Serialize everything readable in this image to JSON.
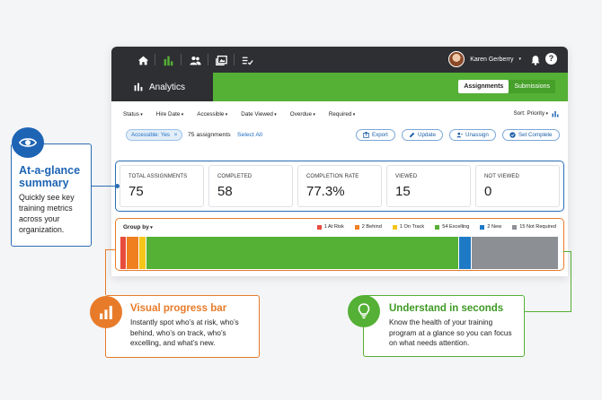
{
  "topnav": {
    "icons": [
      "home-icon",
      "analytics-icon",
      "people-icon",
      "media-icon",
      "checklist-icon",
      "bell-icon",
      "help-icon"
    ],
    "user_name": "Karen Gerberry",
    "help_glyph": "?"
  },
  "header": {
    "title": "Analytics",
    "tab_assignments": "Assignments",
    "tab_submissions": "Submissions",
    "accent": "#55b036"
  },
  "filters": {
    "items": [
      "Status",
      "Hire Date",
      "Accessible",
      "Date Viewed",
      "Overdue",
      "Required"
    ],
    "sort": "Sort: Priority"
  },
  "actions": {
    "chip": "Accessible: Yes",
    "chip_close": "×",
    "count": "75 assignments",
    "select_all": "Select All",
    "export": "Export",
    "update": "Update",
    "unassign": "Unassign",
    "set_complete": "Set Complete"
  },
  "metrics": [
    {
      "label": "TOTAL ASSIGNMENTS",
      "value": "75"
    },
    {
      "label": "COMPLETED",
      "value": "58"
    },
    {
      "label": "COMPLETION RATE",
      "value": "77.3%"
    },
    {
      "label": "VIEWED",
      "value": "15"
    },
    {
      "label": "NOT VIEWED",
      "value": "0"
    }
  ],
  "progress": {
    "group_by": "Group by",
    "legend": [
      {
        "label": "1 At Risk",
        "count": 1,
        "color": "#e84c3d"
      },
      {
        "label": "2 Behind",
        "count": 2,
        "color": "#f07f1f"
      },
      {
        "label": "1 On Track",
        "count": 1,
        "color": "#f5c518"
      },
      {
        "label": "54 Excelling",
        "count": 54,
        "color": "#55b036"
      },
      {
        "label": "2 New",
        "count": 2,
        "color": "#1e7ac4"
      },
      {
        "label": "15 Not Required",
        "count": 15,
        "color": "#8c8f94"
      }
    ]
  },
  "callouts": {
    "glance_title": "At-a-glance summary",
    "glance_desc": "Quickly see key training metrics across your organization.",
    "progress_title": "Visual progress bar",
    "progress_desc": "Instantly spot who’s at risk, who’s behind, who’s on track, who’s excelling, and what’s new.",
    "understand_title": "Understand in seconds",
    "understand_desc": "Know the health of your training program at a glance so you can focus on what needs attention."
  }
}
